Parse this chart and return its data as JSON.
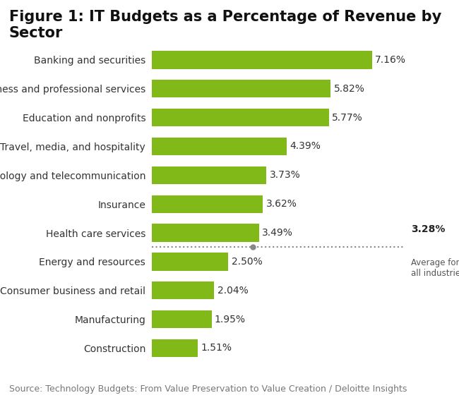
{
  "title": "Figure 1: IT Budgets as a Percentage of Revenue by Sector",
  "categories": [
    "Banking and securities",
    "Business and professional services",
    "Education and nonprofits",
    "Travel, media, and hospitality",
    "Technology and telecommunication",
    "Insurance",
    "Health care services",
    "Energy and resources",
    "Consumer business and retail",
    "Manufacturing",
    "Construction"
  ],
  "values": [
    7.16,
    5.82,
    5.77,
    4.39,
    3.73,
    3.62,
    3.49,
    2.5,
    2.04,
    1.95,
    1.51
  ],
  "bar_color": "#80b918",
  "average_value": 3.28,
  "average_label": "3.28%",
  "average_sublabel": "Average for\nall industries",
  "source_text": "Source: Technology Budgets: From Value Preservation to Value Creation / Deloitte Insights",
  "title_fontsize": 15,
  "label_fontsize": 10,
  "value_fontsize": 10,
  "source_fontsize": 9,
  "xlim_max": 8.2,
  "background_color": "#ffffff"
}
